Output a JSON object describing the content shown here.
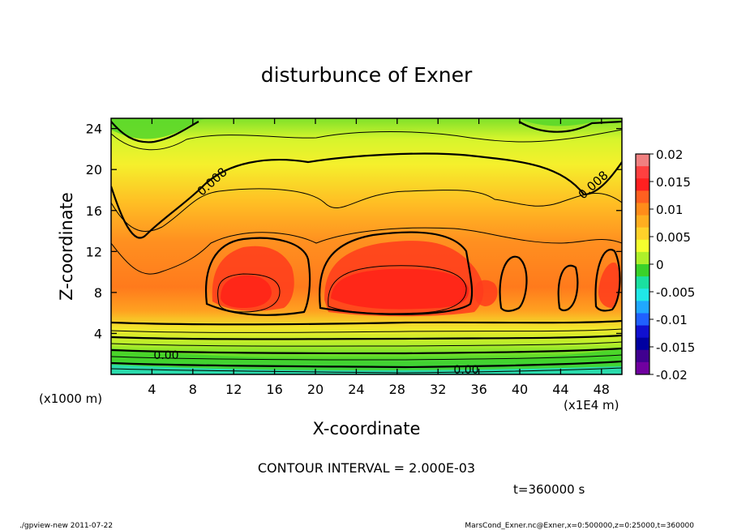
{
  "chart_data": {
    "type": "heatmap",
    "title": "disturbunce of Exner",
    "xlabel": "X-coordinate",
    "ylabel": "Z-coordinate",
    "x_unit": "(x1E4 m)",
    "y_unit": "(x1000 m)",
    "xlim": [
      0,
      50
    ],
    "ylim": [
      0,
      25
    ],
    "x_ticks": [
      4,
      8,
      12,
      16,
      20,
      24,
      28,
      32,
      36,
      40,
      44,
      48
    ],
    "y_ticks": [
      4,
      8,
      12,
      16,
      20,
      24
    ],
    "contour_interval_text": "CONTOUR INTERVAL = 2.000E-03",
    "time_text": "t=360000 s",
    "contour_labels": [
      "0.008",
      "0.008",
      "0.00",
      "0.00"
    ],
    "colorbar": {
      "range": [
        -0.02,
        0.02
      ],
      "tick_labels": [
        "0.02",
        "0.015",
        "0.01",
        "0.005",
        "0",
        "-0.005",
        "-0.01",
        "-0.015",
        "-0.02"
      ],
      "tick_values": [
        0.02,
        0.015,
        0.01,
        0.005,
        0,
        -0.005,
        -0.01,
        -0.015,
        -0.02
      ],
      "colors": [
        "#f08080",
        "#ff4040",
        "#ff2020",
        "#ff6020",
        "#ff8c1a",
        "#ffae20",
        "#ffd22a",
        "#f4ff2e",
        "#aef02a",
        "#3ad22a",
        "#1ae0a0",
        "#20e8e8",
        "#20a8ff",
        "#2060ff",
        "#1010d0",
        "#0000a0",
        "#400090",
        "#7000a0"
      ]
    },
    "value_profile_z": [
      {
        "z": 0,
        "value": -0.002
      },
      {
        "z": 2,
        "value": 0.0
      },
      {
        "z": 4,
        "value": 0.004
      },
      {
        "z": 6,
        "value": 0.009
      },
      {
        "z": 8,
        "value": 0.015
      },
      {
        "z": 10,
        "value": 0.014
      },
      {
        "z": 12,
        "value": 0.012
      },
      {
        "z": 16,
        "value": 0.009
      },
      {
        "z": 20,
        "value": 0.007
      },
      {
        "z": 24,
        "value": 0.004
      }
    ]
  },
  "footer": {
    "left": "./gpview-new   2011-07-22",
    "right": "MarsCond_Exner.nc@Exner,x=0:500000,z=0:25000,t=360000"
  }
}
